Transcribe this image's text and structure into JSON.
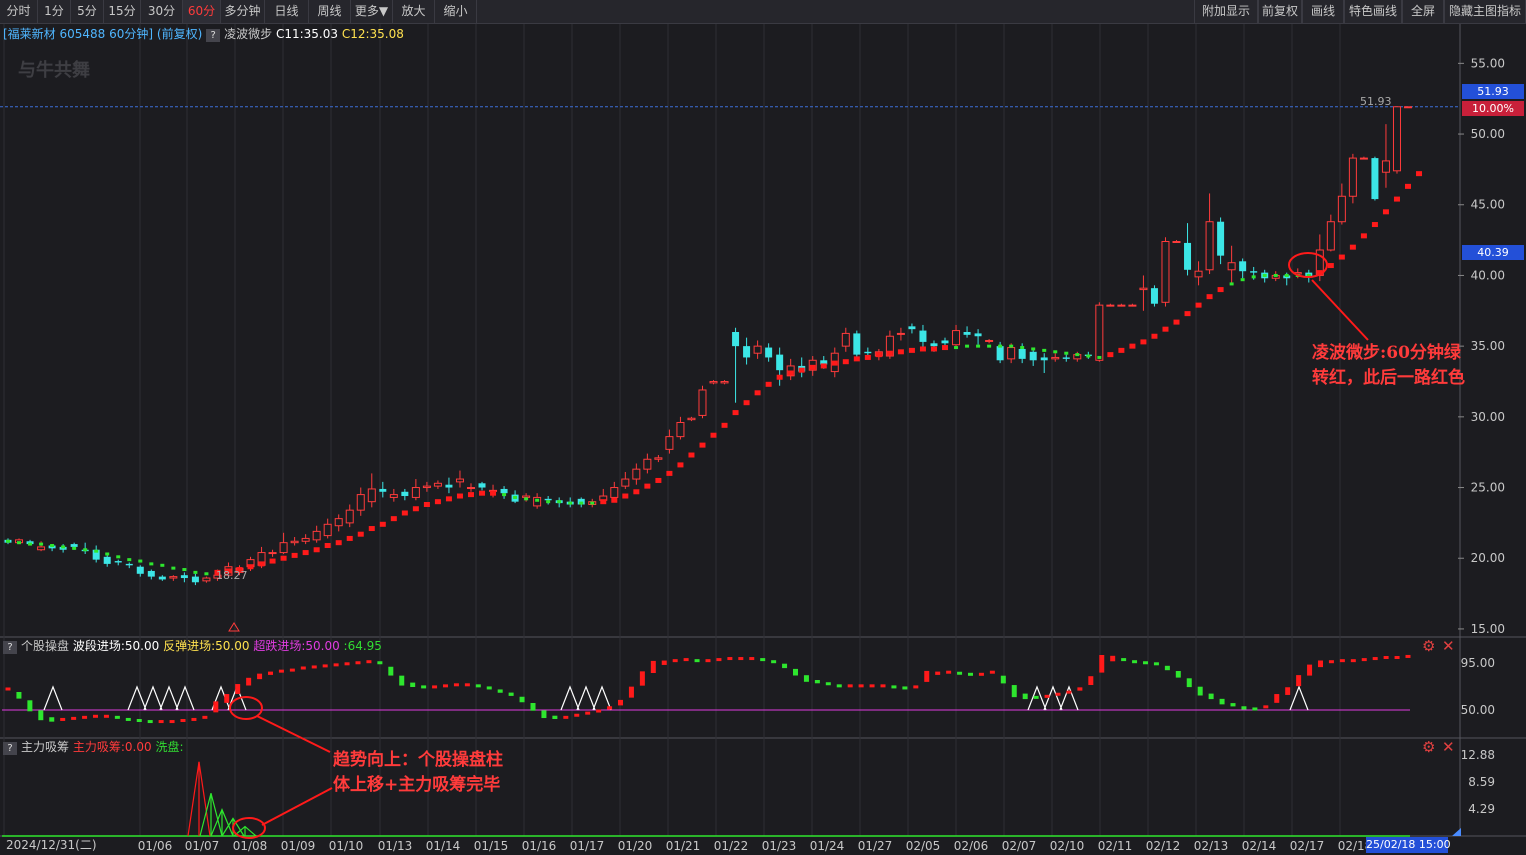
{
  "toolbar": {
    "left": [
      "分时",
      "1分",
      "5分",
      "15分",
      "30分",
      "60分",
      "多分钟",
      "日线",
      "周线",
      "更多▼",
      "放大",
      "缩小"
    ],
    "right": [
      "附加显示",
      "前复权",
      "画线",
      "特色画线",
      "全屏",
      "隐藏主图指标"
    ]
  },
  "main_panel": {
    "title": "[福莱新材 605488 60分钟]",
    "fq": "(前复权)",
    "indicator": "凌波微步",
    "c1": "C11:35.03",
    "c2": "C12:35.08",
    "watermark": "与牛共舞",
    "max_label": "51.93",
    "min_label": "18.27",
    "current_price": "51.93",
    "current_pct": "10.00%",
    "hover_price": "40.39"
  },
  "sub1": {
    "name": "个股操盘",
    "l1": "波段进场:50.00",
    "l2": "反弹进场:50.00",
    "l3": "超跌进场:50.00",
    "l4": ":64.95"
  },
  "sub2": {
    "name": "主力吸筹",
    "l1": "主力吸筹:0.00",
    "l2": "洗盘:"
  },
  "annotations": {
    "a1_line1": "凌波微步:60分钟绿",
    "a1_line2": "转红，此后一路红色",
    "a2_line1": "趋势向上：个股操盘柱",
    "a2_line2": "体上移+主力吸筹完毕"
  },
  "xaxis": {
    "start": "2024/12/31(二)",
    "end": "25/02/18 15:00",
    "labels": [
      "01/06",
      "01/07",
      "01/08",
      "01/09",
      "01/10",
      "01/13",
      "01/14",
      "01/15",
      "01/16",
      "01/17",
      "01/20",
      "01/21",
      "01/22",
      "01/23",
      "01/24",
      "01/27",
      "02/05",
      "02/06",
      "02/07",
      "02/10",
      "02/11",
      "02/12",
      "02/13",
      "02/14",
      "02/17",
      "02/18"
    ]
  },
  "chart_data": {
    "type": "candlestick",
    "main_yaxis": {
      "ticks": [
        55.0,
        50.0,
        45.0,
        40.0,
        35.0,
        30.0,
        25.0,
        20.0,
        15.0
      ],
      "range": [
        14.5,
        57.5
      ]
    },
    "sub1_yaxis": {
      "ticks": [
        95.0,
        50.0
      ],
      "range": [
        30,
        110
      ]
    },
    "sub2_yaxis": {
      "ticks": [
        12.88,
        8.59,
        4.29
      ],
      "range": [
        0,
        14
      ]
    },
    "candles": [
      [
        21.3,
        21.1,
        21.4,
        21.0
      ],
      [
        21.1,
        21.3,
        21.4,
        21.0
      ],
      [
        21.2,
        21.0,
        21.3,
        20.9
      ],
      [
        20.6,
        20.8,
        21.2,
        20.5
      ],
      [
        20.9,
        20.7,
        21.0,
        20.5
      ],
      [
        20.8,
        20.6,
        21.0,
        20.4
      ],
      [
        21.0,
        20.8,
        21.1,
        20.6
      ],
      [
        20.6,
        20.5,
        21.1,
        20.3
      ],
      [
        20.6,
        19.9,
        20.9,
        19.7
      ],
      [
        20.1,
        19.6,
        20.2,
        19.4
      ],
      [
        19.8,
        19.7,
        19.9,
        19.5
      ],
      [
        19.6,
        19.5,
        19.7,
        19.3
      ],
      [
        19.4,
        18.9,
        19.5,
        18.7
      ],
      [
        19.1,
        18.7,
        19.2,
        18.5
      ],
      [
        18.7,
        18.5,
        18.8,
        18.4
      ],
      [
        18.6,
        18.7,
        18.8,
        18.4
      ],
      [
        18.8,
        18.6,
        19.0,
        18.3
      ],
      [
        18.7,
        18.3,
        18.9,
        18.1
      ],
      [
        18.4,
        18.6,
        18.7,
        18.27
      ],
      [
        18.6,
        18.8,
        19.2,
        18.4
      ],
      [
        18.8,
        19.4,
        19.7,
        18.6
      ],
      [
        19.0,
        19.3,
        19.5,
        18.8
      ],
      [
        19.4,
        19.9,
        20.1,
        19.1
      ],
      [
        19.5,
        20.4,
        20.8,
        19.3
      ],
      [
        20.4,
        20.4,
        20.6,
        20.1
      ],
      [
        20.4,
        21.1,
        21.8,
        20.3
      ],
      [
        21.1,
        21.2,
        21.5,
        20.9
      ],
      [
        21.2,
        21.4,
        21.7,
        21.0
      ],
      [
        21.3,
        21.9,
        22.3,
        21.1
      ],
      [
        21.6,
        22.4,
        22.8,
        21.4
      ],
      [
        22.3,
        22.8,
        23.1,
        21.9
      ],
      [
        22.5,
        23.4,
        23.8,
        22.2
      ],
      [
        23.4,
        24.5,
        25.0,
        23.0
      ],
      [
        24.0,
        24.9,
        26.0,
        23.6
      ],
      [
        24.9,
        24.7,
        25.4,
        24.3
      ],
      [
        24.3,
        24.5,
        24.9,
        24.0
      ],
      [
        24.7,
        24.4,
        24.9,
        24.1
      ],
      [
        24.3,
        25.0,
        25.6,
        24.1
      ],
      [
        25.0,
        25.1,
        25.4,
        24.7
      ],
      [
        25.1,
        25.3,
        25.5,
        24.9
      ],
      [
        25.2,
        25.0,
        25.7,
        24.6
      ],
      [
        25.4,
        25.6,
        26.2,
        25.0
      ],
      [
        25.0,
        25.0,
        25.3,
        24.7
      ],
      [
        25.3,
        25.0,
        25.4,
        24.8
      ],
      [
        24.8,
        24.8,
        25.2,
        24.3
      ],
      [
        24.9,
        24.6,
        25.1,
        24.2
      ],
      [
        24.5,
        24.0,
        24.8,
        23.9
      ],
      [
        24.3,
        24.4,
        24.6,
        24.0
      ],
      [
        23.7,
        24.3,
        24.6,
        23.5
      ],
      [
        24.2,
        24.1,
        24.4,
        23.8
      ],
      [
        24.1,
        23.9,
        24.3,
        23.6
      ],
      [
        24.0,
        23.8,
        24.3,
        23.6
      ],
      [
        24.2,
        23.8,
        24.3,
        23.6
      ],
      [
        23.8,
        24.0,
        24.2,
        23.6
      ],
      [
        24.1,
        24.4,
        24.9,
        23.9
      ],
      [
        24.3,
        25.0,
        25.4,
        24.1
      ],
      [
        25.1,
        25.6,
        26.1,
        24.9
      ],
      [
        25.6,
        26.3,
        26.7,
        25.2
      ],
      [
        26.3,
        27.0,
        27.4,
        26.0
      ],
      [
        27.0,
        27.1,
        27.3,
        26.8
      ],
      [
        27.7,
        28.6,
        29.1,
        27.4
      ],
      [
        28.6,
        29.6,
        30.0,
        28.4
      ],
      [
        29.8,
        29.9,
        30.0,
        29.7
      ],
      [
        30.1,
        31.9,
        32.2,
        29.9
      ],
      [
        32.4,
        32.5,
        32.6,
        32.3
      ],
      [
        32.4,
        32.5,
        32.6,
        32.3
      ],
      [
        36.0,
        35.0,
        36.3,
        31.0
      ],
      [
        35.0,
        34.2,
        35.6,
        33.7
      ],
      [
        34.5,
        35.0,
        35.4,
        34.1
      ],
      [
        34.9,
        34.2,
        35.2,
        33.9
      ],
      [
        34.4,
        33.3,
        34.9,
        32.2
      ],
      [
        32.9,
        33.6,
        34.1,
        32.6
      ],
      [
        33.6,
        33.2,
        34.2,
        32.8
      ],
      [
        33.3,
        34.0,
        34.3,
        32.9
      ],
      [
        34.0,
        33.7,
        34.3,
        33.4
      ],
      [
        33.2,
        34.5,
        34.9,
        32.8
      ],
      [
        35.0,
        35.9,
        36.3,
        34.6
      ],
      [
        35.9,
        34.4,
        36.1,
        34.0
      ],
      [
        34.6,
        34.5,
        34.9,
        34.1
      ],
      [
        34.3,
        34.6,
        34.8,
        34.0
      ],
      [
        34.3,
        35.7,
        36.1,
        34.1
      ],
      [
        35.9,
        35.9,
        36.3,
        35.4
      ],
      [
        36.4,
        36.2,
        36.6,
        35.9
      ],
      [
        36.1,
        35.3,
        36.5,
        34.9
      ],
      [
        35.2,
        35.0,
        35.4,
        34.6
      ],
      [
        35.4,
        35.2,
        35.6,
        35.0
      ],
      [
        35.1,
        36.1,
        36.5,
        34.9
      ],
      [
        36.0,
        35.8,
        36.4,
        35.6
      ],
      [
        35.9,
        35.7,
        36.2,
        35.1
      ],
      [
        35.4,
        35.4,
        35.5,
        35.2
      ],
      [
        35.0,
        34.0,
        35.3,
        33.8
      ],
      [
        34.1,
        34.9,
        35.2,
        33.8
      ],
      [
        34.8,
        34.1,
        35.2,
        33.8
      ],
      [
        34.6,
        34.0,
        34.9,
        33.6
      ],
      [
        34.2,
        34.0,
        34.5,
        33.1
      ],
      [
        34.1,
        34.2,
        34.5,
        33.9
      ],
      [
        34.2,
        34.1,
        34.4,
        33.9
      ],
      [
        34.1,
        34.4,
        34.6,
        33.9
      ],
      [
        34.4,
        34.3,
        34.6,
        34.1
      ],
      [
        34.0,
        37.9,
        38.1,
        33.9
      ],
      [
        37.9,
        37.9,
        38.0,
        37.8
      ],
      [
        37.9,
        37.9,
        38.0,
        37.8
      ],
      [
        37.9,
        37.9,
        38.0,
        37.8
      ],
      [
        39.0,
        39.1,
        40.0,
        37.5
      ],
      [
        39.1,
        38.0,
        39.3,
        37.8
      ],
      [
        38.1,
        42.4,
        42.7,
        37.8
      ],
      [
        42.4,
        42.4,
        42.5,
        42.3
      ],
      [
        42.3,
        40.4,
        43.7,
        40.0
      ],
      [
        39.9,
        40.3,
        41.0,
        39.3
      ],
      [
        40.4,
        43.8,
        45.8,
        40.1
      ],
      [
        43.8,
        41.4,
        44.1,
        40.8
      ],
      [
        40.4,
        40.9,
        42.1,
        39.5
      ],
      [
        41.0,
        40.3,
        41.2,
        39.8
      ],
      [
        40.3,
        40.2,
        40.6,
        39.7
      ],
      [
        40.2,
        39.8,
        40.4,
        39.5
      ],
      [
        39.8,
        40.0,
        40.3,
        39.6
      ],
      [
        40.0,
        39.8,
        40.2,
        39.3
      ],
      [
        40.1,
        40.2,
        40.5,
        39.8
      ],
      [
        40.2,
        39.9,
        40.4,
        39.5
      ],
      [
        40.0,
        41.8,
        42.9,
        39.6
      ],
      [
        41.8,
        43.8,
        44.3,
        41.7
      ],
      [
        43.8,
        45.6,
        46.5,
        43.6
      ],
      [
        45.6,
        48.3,
        48.6,
        45.1
      ],
      [
        48.3,
        48.3,
        48.4,
        48.2
      ],
      [
        48.3,
        45.4,
        48.4,
        45.3
      ],
      [
        47.3,
        48.1,
        50.7,
        46.2
      ],
      [
        47.4,
        51.93,
        51.93,
        47.2
      ],
      [
        51.93,
        51.93,
        51.93,
        51.93
      ]
    ],
    "main_line": [
      21.2,
      21.1,
      21.0,
      21.0,
      20.9,
      20.8,
      20.7,
      20.6,
      20.5,
      20.3,
      20.1,
      19.9,
      19.8,
      19.6,
      19.5,
      19.3,
      19.2,
      19.0,
      18.9,
      19.0,
      19.1,
      19.2,
      19.4,
      19.6,
      19.8,
      20.0,
      20.2,
      20.4,
      20.6,
      20.9,
      21.1,
      21.4,
      21.7,
      22.1,
      22.4,
      22.8,
      23.2,
      23.5,
      23.8,
      24.0,
      24.2,
      24.4,
      24.5,
      24.6,
      24.6,
      24.5,
      24.3,
      24.2,
      24.1,
      24.0,
      24.0,
      23.9,
      23.9,
      23.9,
      24.0,
      24.1,
      24.4,
      24.7,
      25.1,
      25.5,
      26.0,
      26.6,
      27.3,
      28.0,
      28.7,
      29.4,
      30.3,
      31.0,
      31.7,
      32.3,
      32.8,
      33.1,
      33.3,
      33.5,
      33.6,
      33.8,
      33.9,
      34.1,
      34.2,
      34.4,
      34.5,
      34.6,
      34.7,
      34.8,
      34.8,
      34.9,
      34.9,
      35.0,
      35.0,
      35.0,
      35.0,
      35.0,
      34.9,
      34.8,
      34.7,
      34.6,
      34.5,
      34.4,
      34.3,
      34.2,
      34.4,
      34.7,
      35.0,
      35.3,
      35.7,
      36.2,
      36.7,
      37.3,
      37.9,
      38.5,
      39.0,
      39.4,
      39.7,
      39.9,
      40.0,
      40.0,
      40.0,
      40.0,
      40.0,
      40.2,
      40.7,
      41.3,
      42.0,
      42.8,
      43.6,
      44.5,
      45.4,
      46.3,
      47.2
    ],
    "main_line_red_segments_note": "green above price before 01/08 and during 01/15-01/17 and 02/06-02/10; red afterward",
    "sub1_bars": [
      70,
      64,
      54,
      45,
      41,
      41,
      42,
      43,
      44,
      44,
      43,
      41,
      40,
      39,
      39,
      39,
      40,
      41,
      43,
      53,
      61,
      70,
      77,
      82,
      85,
      87,
      88,
      90,
      91,
      92,
      93,
      94,
      95,
      96,
      95,
      87,
      78,
      74,
      72,
      72,
      73,
      74,
      74,
      73,
      71,
      68,
      65,
      60,
      53,
      46,
      43,
      43,
      45,
      47,
      49,
      52,
      57,
      67,
      80,
      91,
      95,
      97,
      98,
      97,
      97,
      98,
      99,
      99,
      99,
      98,
      96,
      92,
      86,
      80,
      77,
      75,
      73,
      73,
      73,
      73,
      73,
      72,
      71,
      72,
      82,
      85,
      86,
      85,
      84,
      84,
      86,
      79,
      68,
      63,
      62,
      63,
      65,
      67,
      70,
      78,
      94,
      99,
      98,
      96,
      95,
      94,
      90,
      84,
      76,
      68,
      63,
      58,
      55,
      52,
      51,
      53,
      61,
      68,
      78,
      88,
      94,
      96,
      97,
      97,
      98,
      99,
      100,
      100,
      101
    ],
    "sub1_colors_note": "red when rising, green when falling",
    "sub2_spikes": [
      {
        "x": 199,
        "v": 11.8,
        "color": "red"
      },
      {
        "x": 211,
        "v": 6.8,
        "color": "green"
      },
      {
        "x": 222,
        "v": 4.2,
        "color": "green"
      },
      {
        "x": 233,
        "v": 2.8,
        "color": "green"
      },
      {
        "x": 245,
        "v": 1.5,
        "color": "green"
      }
    ]
  }
}
